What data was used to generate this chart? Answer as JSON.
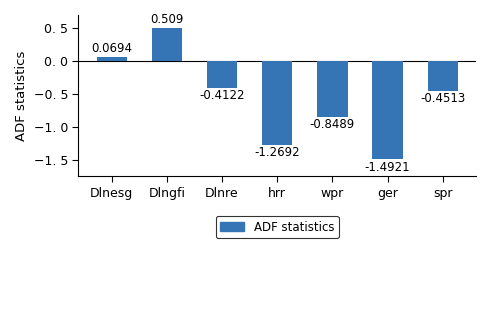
{
  "categories": [
    "Dlnesg",
    "Dlngfi",
    "Dlnre",
    "hrr",
    "wpr",
    "ger",
    "spr"
  ],
  "values": [
    0.0694,
    0.509,
    -0.4122,
    -1.2692,
    -0.8489,
    -1.4921,
    -0.4513
  ],
  "value_labels": [
    "0.0694",
    "0.509",
    "-0.4122",
    "-1.2692",
    "-0.8489",
    "-1.4921",
    "-0.4513"
  ],
  "bar_color": "#3575b5",
  "ylabel": "ADF statistics",
  "ylim": [
    -1.75,
    0.7
  ],
  "yticks": [
    -1.5,
    -1.0,
    -0.5,
    0.0,
    0.5
  ],
  "legend_label": "ADF statistics",
  "label_fontsize": 8.5,
  "tick_fontsize": 9,
  "ylabel_fontsize": 9.5
}
